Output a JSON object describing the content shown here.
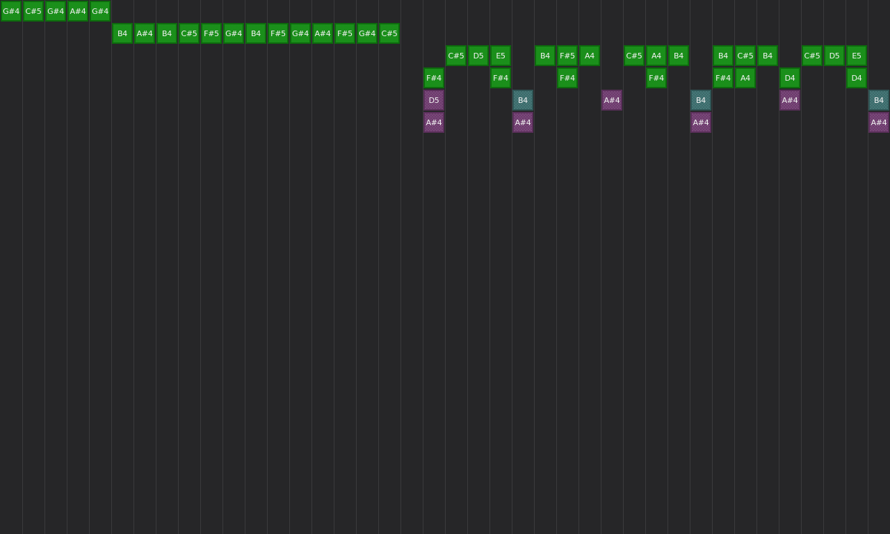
{
  "colors": {
    "background": "#262628",
    "grid_line": "#3b3b3d",
    "green": "#179417",
    "purple": "#7a477a",
    "teal": "#467878"
  },
  "step_count": 40,
  "lanes": [
    {
      "kind": "green",
      "notes": [
        "G#4",
        "C#5",
        "G#4",
        "A#4",
        "G#4",
        null,
        null,
        null,
        null,
        null,
        null,
        null,
        null,
        null,
        null,
        null,
        null,
        null,
        null,
        null,
        null,
        null,
        null,
        null,
        null,
        null,
        null,
        null,
        null,
        null,
        null,
        null,
        null,
        null,
        null,
        null,
        null,
        null,
        null,
        null
      ]
    },
    {
      "kind": "green",
      "notes": [
        null,
        null,
        null,
        null,
        null,
        "B4",
        "A#4",
        "B4",
        "C#5",
        "F#5",
        "G#4",
        "B4",
        "F#5",
        "G#4",
        "A#4",
        "F#5",
        "G#4",
        "C#5",
        null,
        null,
        null,
        null,
        null,
        null,
        null,
        null,
        null,
        null,
        null,
        null,
        null,
        null,
        null,
        null,
        null,
        null,
        null,
        null,
        null,
        null
      ]
    },
    {
      "kind": "green",
      "notes": [
        null,
        null,
        null,
        null,
        null,
        null,
        null,
        null,
        null,
        null,
        null,
        null,
        null,
        null,
        null,
        null,
        null,
        null,
        null,
        null,
        "C#5",
        "D5",
        "E5",
        null,
        "B4",
        "F#5",
        "A4",
        null,
        "C#5",
        "A4",
        "B4",
        null,
        "B4",
        "C#5",
        "B4",
        null,
        "C#5",
        "D5",
        "E5",
        null
      ]
    },
    {
      "kind": "green",
      "notes": [
        null,
        null,
        null,
        null,
        null,
        null,
        null,
        null,
        null,
        null,
        null,
        null,
        null,
        null,
        null,
        null,
        null,
        null,
        null,
        "F#4",
        null,
        null,
        "F#4",
        null,
        null,
        "F#4",
        null,
        null,
        null,
        "F#4",
        null,
        null,
        "F#4",
        "A4",
        null,
        "D4",
        null,
        null,
        "D4",
        null
      ]
    },
    {
      "kind": "mixed",
      "notes": [
        null,
        null,
        null,
        null,
        null,
        null,
        null,
        null,
        null,
        null,
        null,
        null,
        null,
        null,
        null,
        null,
        null,
        null,
        null,
        {
          "note": "D5",
          "kind": "purple"
        },
        null,
        null,
        null,
        {
          "note": "B4",
          "kind": "teal"
        },
        null,
        null,
        null,
        {
          "note": "A#4",
          "kind": "purple"
        },
        null,
        null,
        null,
        {
          "note": "B4",
          "kind": "teal"
        },
        null,
        null,
        null,
        {
          "note": "A#4",
          "kind": "purple"
        },
        null,
        null,
        null,
        {
          "note": "B4",
          "kind": "teal"
        }
      ]
    },
    {
      "kind": "purple",
      "notes": [
        null,
        null,
        null,
        null,
        null,
        null,
        null,
        null,
        null,
        null,
        null,
        null,
        null,
        null,
        null,
        null,
        null,
        null,
        null,
        "A#4",
        null,
        null,
        null,
        "A#4",
        null,
        null,
        null,
        null,
        null,
        null,
        null,
        "A#4",
        null,
        null,
        null,
        null,
        null,
        null,
        null,
        "A#4"
      ]
    }
  ]
}
